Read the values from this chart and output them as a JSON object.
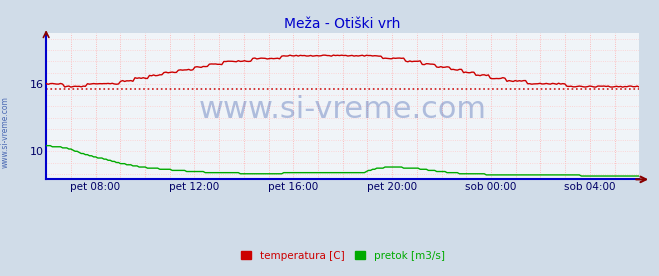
{
  "title": "Meža - Otiški vrh",
  "title_color": "#0000cc",
  "title_fontsize": 10,
  "bg_color": "#d0dce8",
  "plot_bg_color": "#f0f4f8",
  "y_ticks": [
    10,
    16
  ],
  "y_min": 7.5,
  "y_max": 20.5,
  "x_labels": [
    "pet 08:00",
    "pet 12:00",
    "pet 16:00",
    "pet 20:00",
    "sob 00:00",
    "sob 04:00"
  ],
  "x_label_color": "#000066",
  "watermark": "www.si-vreme.com",
  "watermark_color": "#3355aa",
  "watermark_alpha": 0.35,
  "watermark_fontsize": 22,
  "legend_labels": [
    "temperatura [C]",
    "pretok [m3/s]"
  ],
  "legend_colors": [
    "#cc0000",
    "#00aa00"
  ],
  "sidebar_text": "www.si-vreme.com",
  "sidebar_color": "#3355aa",
  "n_points": 288,
  "avg_line_color": "#cc0000",
  "avg_value": 15.5,
  "arrow_color": "#880000",
  "x_axis_color": "#0000cc",
  "left_axis_color": "#0000cc",
  "vgrid_color": "#ffaaaa",
  "hgrid_color": "#ffcccc",
  "temp_x": [
    0,
    0.01,
    0.02,
    0.04,
    0.055,
    0.07,
    0.09,
    0.11,
    0.13,
    0.15,
    0.17,
    0.2,
    0.23,
    0.26,
    0.3,
    0.34,
    0.38,
    0.42,
    0.46,
    0.5,
    0.54,
    0.58,
    0.62,
    0.65,
    0.68,
    0.71,
    0.74,
    0.77,
    0.8,
    0.83,
    0.86,
    0.89,
    0.92,
    0.95,
    0.98,
    1.0
  ],
  "temp_y": [
    16.1,
    16.0,
    15.9,
    15.85,
    15.7,
    15.9,
    16.1,
    16.0,
    16.2,
    16.4,
    16.6,
    16.9,
    17.2,
    17.5,
    17.9,
    18.1,
    18.3,
    18.5,
    18.6,
    18.6,
    18.5,
    18.3,
    18.0,
    17.7,
    17.4,
    17.0,
    16.7,
    16.4,
    16.2,
    16.0,
    15.9,
    15.85,
    15.8,
    15.75,
    15.72,
    15.7
  ],
  "flow_x": [
    0,
    0.02,
    0.04,
    0.06,
    0.08,
    0.1,
    0.12,
    0.14,
    0.16,
    0.18,
    0.2,
    0.22,
    0.25,
    0.28,
    0.31,
    0.34,
    0.37,
    0.4,
    0.43,
    0.46,
    0.5,
    0.53,
    0.56,
    0.58,
    0.6,
    0.62,
    0.65,
    0.68,
    0.71,
    0.74,
    0.77,
    0.8,
    0.83,
    0.86,
    0.9,
    0.93,
    0.96,
    1.0
  ],
  "flow_y": [
    10.5,
    10.4,
    10.2,
    9.8,
    9.5,
    9.3,
    9.0,
    8.8,
    8.6,
    8.5,
    8.4,
    8.3,
    8.2,
    8.1,
    8.1,
    8.0,
    8.0,
    8.05,
    8.1,
    8.15,
    8.1,
    8.05,
    8.5,
    8.6,
    8.55,
    8.5,
    8.3,
    8.1,
    8.0,
    7.95,
    7.9,
    7.88,
    7.87,
    7.86,
    7.85,
    7.84,
    7.83,
    7.82
  ]
}
